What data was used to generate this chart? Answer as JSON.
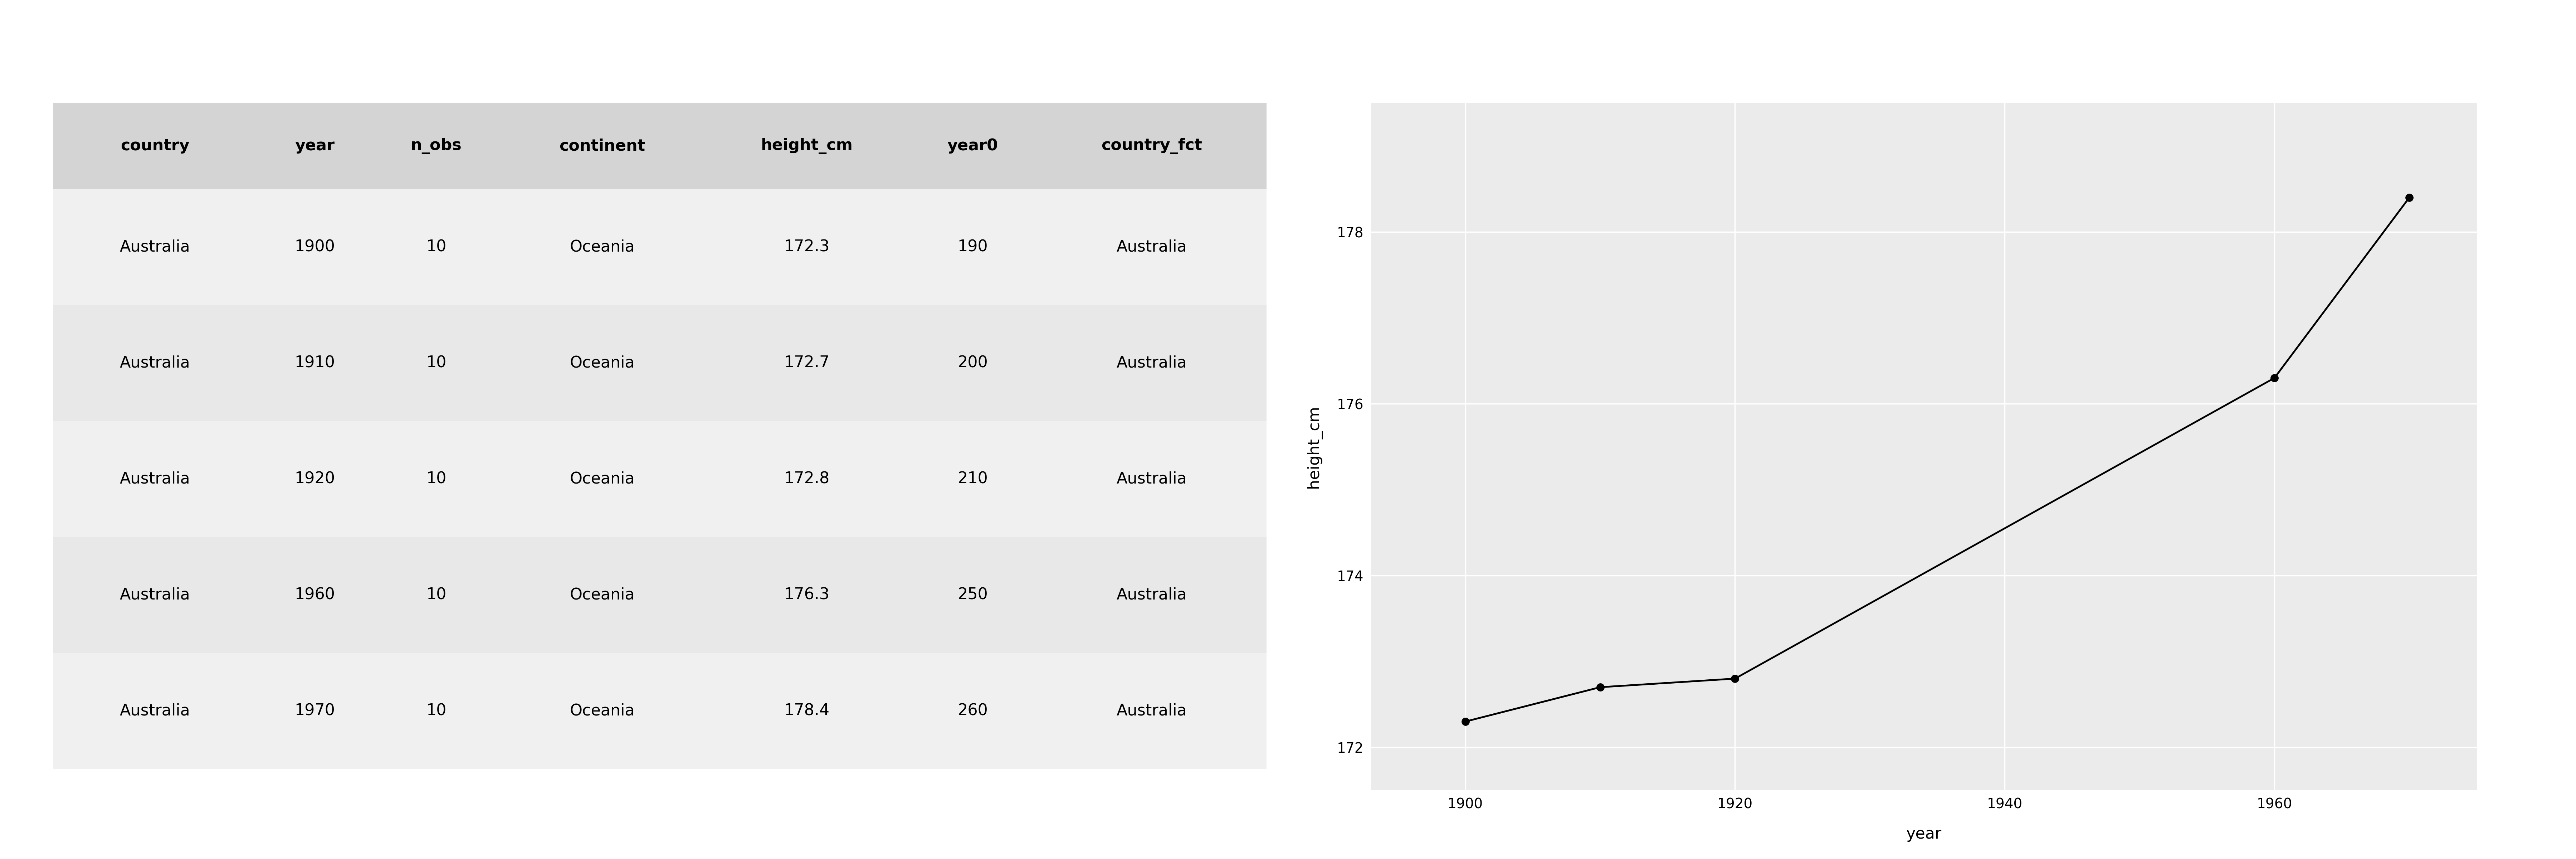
{
  "table": {
    "headers": [
      "country",
      "year",
      "n_obs",
      "continent",
      "height_cm",
      "year0",
      "country_fct"
    ],
    "rows": [
      [
        "Australia",
        "1900",
        "10",
        "Oceania",
        "172.3",
        "190",
        "Australia"
      ],
      [
        "Australia",
        "1910",
        "10",
        "Oceania",
        "172.7",
        "200",
        "Australia"
      ],
      [
        "Australia",
        "1920",
        "10",
        "Oceania",
        "172.8",
        "210",
        "Australia"
      ],
      [
        "Australia",
        "1960",
        "10",
        "Oceania",
        "176.3",
        "250",
        "Australia"
      ],
      [
        "Australia",
        "1970",
        "10",
        "Oceania",
        "178.4",
        "260",
        "Australia"
      ]
    ],
    "col_widths": [
      0.16,
      0.09,
      0.1,
      0.16,
      0.16,
      0.1,
      0.18
    ],
    "header_bg": "#d4d4d4",
    "even_row_color": "#e8e8e8",
    "odd_row_color": "#f0f0f0"
  },
  "plot": {
    "years": [
      1900,
      1910,
      1920,
      1960,
      1970
    ],
    "heights": [
      172.3,
      172.7,
      172.8,
      176.3,
      178.4
    ],
    "xlabel": "year",
    "ylabel": "height_cm",
    "bg_color": "#ebebeb",
    "grid_color": "#ffffff",
    "line_color": "#000000",
    "marker_color": "#000000",
    "yticks": [
      172,
      174,
      176,
      178
    ],
    "xticks": [
      1900,
      1920,
      1940,
      1960
    ],
    "xlim": [
      1893,
      1975
    ],
    "ylim": [
      171.5,
      179.5
    ],
    "marker_size": 7,
    "line_width": 2.0,
    "tick_fontsize": 28,
    "label_fontsize": 32
  }
}
